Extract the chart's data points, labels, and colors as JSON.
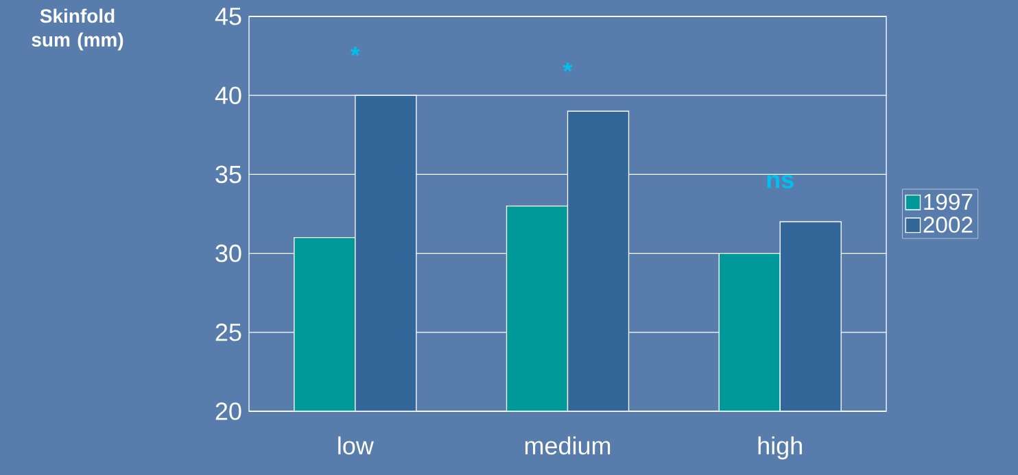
{
  "chart_data": {
    "type": "bar",
    "ylabel": "Skinfold sum (mm)",
    "categories": [
      "low",
      "medium",
      "high"
    ],
    "series": [
      {
        "name": "1997",
        "color": "#009999",
        "values": [
          31,
          33,
          30
        ]
      },
      {
        "name": "2002",
        "color": "#336699",
        "values": [
          40,
          39,
          32
        ]
      }
    ],
    "ylim": [
      20,
      45
    ],
    "yticks": [
      20,
      25,
      30,
      35,
      40,
      45
    ],
    "grid": "y",
    "legend": "right",
    "annotations": [
      "*",
      "*",
      "ns"
    ]
  }
}
